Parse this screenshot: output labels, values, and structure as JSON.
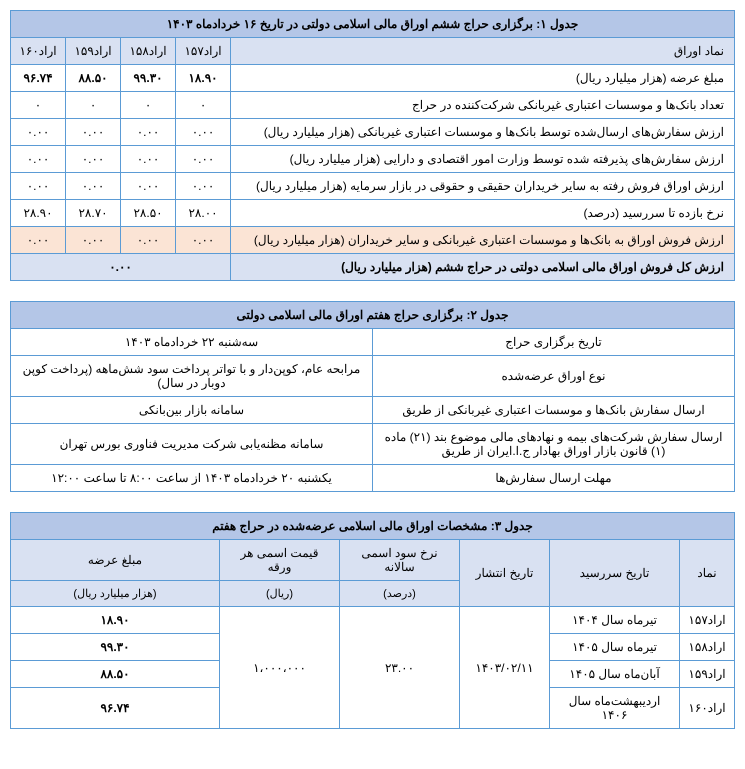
{
  "table1": {
    "title": "جدول ۱: برگزاری حراج ششم اوراق مالی اسلامی دولتی در تاریخ ۱۶ خردادماه ۱۴۰۳",
    "symbol_header": "نماد اوراق",
    "symbols": [
      "اراد۱۵۷",
      "اراد۱۵۸",
      "اراد۱۵۹",
      "اراد۱۶۰"
    ],
    "rows": [
      {
        "label": "مبلغ عرضه (هزار میلیارد ریال)",
        "v": [
          "۱۸.۹۰",
          "۹۹.۳۰",
          "۸۸.۵۰",
          "۹۶.۷۴"
        ]
      },
      {
        "label": "تعداد بانک‌ها و موسسات اعتباری غیربانکی شرکت‌کننده در حراج",
        "v": [
          "۰",
          "۰",
          "۰",
          "۰"
        ]
      },
      {
        "label": "ارزش سفارش‌های ارسال‌شده توسط بانک‌ها و موسسات اعتباری غیربانکی (هزار میلیارد ریال)",
        "v": [
          "۰.۰۰",
          "۰.۰۰",
          "۰.۰۰",
          "۰.۰۰"
        ]
      },
      {
        "label": "ارزش سفارش‌های پذیرفته شده توسط وزارت امور اقتصادی و دارایی (هزار میلیارد ریال)",
        "v": [
          "۰.۰۰",
          "۰.۰۰",
          "۰.۰۰",
          "۰.۰۰"
        ]
      },
      {
        "label": "ارزش اوراق فروش رفته به سایر خریداران حقیقی و حقوقی در بازار سرمایه (هزار میلیارد ریال)",
        "v": [
          "۰.۰۰",
          "۰.۰۰",
          "۰.۰۰",
          "۰.۰۰"
        ]
      },
      {
        "label": "نرخ بازده تا سررسید (درصد)",
        "v": [
          "۲۸.۰۰",
          "۲۸.۵۰",
          "۲۸.۷۰",
          "۲۸.۹۰"
        ]
      }
    ],
    "highlight_row": {
      "label": "ارزش فروش اوراق به بانک‌ها و موسسات اعتباری غیربانکی و سایر خریداران (هزار میلیارد ریال)",
      "v": [
        "۰.۰۰",
        "۰.۰۰",
        "۰.۰۰",
        "۰.۰۰"
      ]
    },
    "total_row": {
      "label": "ارزش کل فروش اوراق مالی اسلامی دولتی در حراج ششم (هزار میلیارد ریال)",
      "value": "۰.۰۰"
    }
  },
  "table2": {
    "title": "جدول ۲: برگزاری حراج هفتم اوراق مالی اسلامی دولتی",
    "rows": [
      {
        "r": "تاریخ برگزاری حراج",
        "l": "سه‌شنبه ۲۲ خردادماه ۱۴۰۳"
      },
      {
        "r": "نوع اوراق عرضه‌شده",
        "l": "مرابحه عام، کوپن‌دار و با تواتر پرداخت سود شش‌ماهه (پرداخت کوپن دوبار در سال)"
      },
      {
        "r": "ارسال سفارش بانک‌ها و موسسات اعتباری غیربانکی از طریق",
        "l": "سامانه بازار بین‌بانکی"
      },
      {
        "r": "ارسال سفارش شرکت‌های بیمه و نهادهای مالی موضوع بند (۲۱) ماده (۱) قانون بازار اوراق بهادار ج.ا.ایران از طریق",
        "l": "سامانه مظنه‌یابی شرکت مدیریت فناوری بورس تهران"
      },
      {
        "r": "مهلت ارسال سفارش‌ها",
        "l": "یکشنبه ۲۰ خردادماه ۱۴۰۳ از ساعت ۸:۰۰ تا ساعت ۱۲:۰۰"
      }
    ]
  },
  "table3": {
    "title": "جدول ۳: مشخصات اوراق مالی اسلامی عرضه‌شده در حراج هفتم",
    "headers": {
      "symbol": "نماد",
      "maturity": "تاریخ سررسید",
      "issue": "تاریخ انتشار",
      "rate1": "نرخ سود اسمی سالانه",
      "rate2": "(درصد)",
      "nominal1": "قیمت اسمی هر ورقه",
      "nominal2": "(ریال)",
      "amount1": "مبلغ عرضه",
      "amount2": "(هزار میلیارد ریال)"
    },
    "issue_date": "۱۴۰۳/۰۲/۱۱",
    "annual_rate": "۲۳.۰۰",
    "nominal_price": "۱،۰۰۰،۰۰۰",
    "rows": [
      {
        "symbol": "اراد۱۵۷",
        "maturity": "تیرماه سال ۱۴۰۴",
        "amount": "۱۸.۹۰"
      },
      {
        "symbol": "اراد۱۵۸",
        "maturity": "تیرماه سال ۱۴۰۵",
        "amount": "۹۹.۳۰"
      },
      {
        "symbol": "اراد۱۵۹",
        "maturity": "آبان‌ماه سال ۱۴۰۵",
        "amount": "۸۸.۵۰"
      },
      {
        "symbol": "اراد۱۶۰",
        "maturity": "اردیبهشت‌ماه سال ۱۴۰۶",
        "amount": "۹۶.۷۴"
      }
    ]
  }
}
